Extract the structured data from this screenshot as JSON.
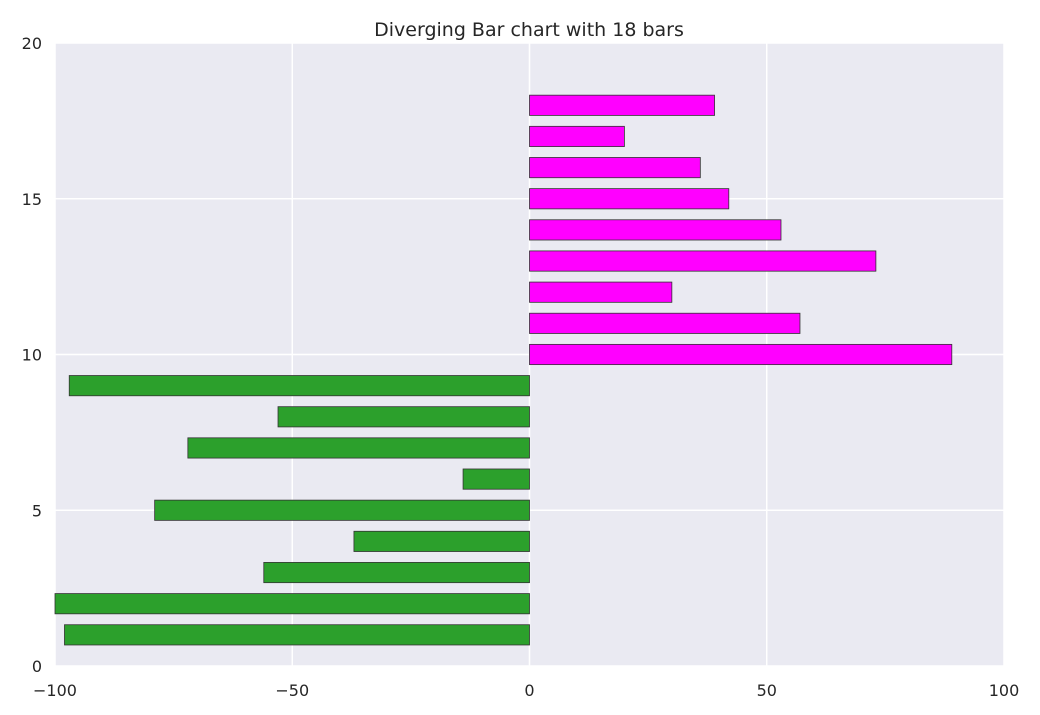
{
  "chart_data": {
    "type": "bar",
    "orientation": "horizontal",
    "title": "Diverging Bar chart with 18 bars",
    "xlabel": "",
    "ylabel": "",
    "xlim": [
      -100,
      100
    ],
    "ylim": [
      0,
      20
    ],
    "xticks": [
      -100,
      -50,
      0,
      50,
      100
    ],
    "xtick_labels": [
      "−100",
      "−50",
      "0",
      "50",
      "100"
    ],
    "yticks": [
      0,
      5,
      10,
      15,
      20
    ],
    "ytick_labels": [
      "0",
      "5",
      "10",
      "15",
      "20"
    ],
    "grid": true,
    "background": "#eaeaf2",
    "grid_color": "#ffffff",
    "colors": {
      "negative": "#2ca02c",
      "positive": "#ff00ff"
    },
    "bars": [
      {
        "y": 1,
        "value": -98
      },
      {
        "y": 2,
        "value": -100
      },
      {
        "y": 3,
        "value": -56
      },
      {
        "y": 4,
        "value": -37
      },
      {
        "y": 5,
        "value": -79
      },
      {
        "y": 6,
        "value": -14
      },
      {
        "y": 7,
        "value": -72
      },
      {
        "y": 8,
        "value": -53
      },
      {
        "y": 9,
        "value": -97
      },
      {
        "y": 10,
        "value": 89
      },
      {
        "y": 11,
        "value": 57
      },
      {
        "y": 12,
        "value": 30
      },
      {
        "y": 13,
        "value": 73
      },
      {
        "y": 14,
        "value": 53
      },
      {
        "y": 15,
        "value": 42
      },
      {
        "y": 16,
        "value": 36
      },
      {
        "y": 17,
        "value": 20
      },
      {
        "y": 18,
        "value": 39
      }
    ]
  }
}
